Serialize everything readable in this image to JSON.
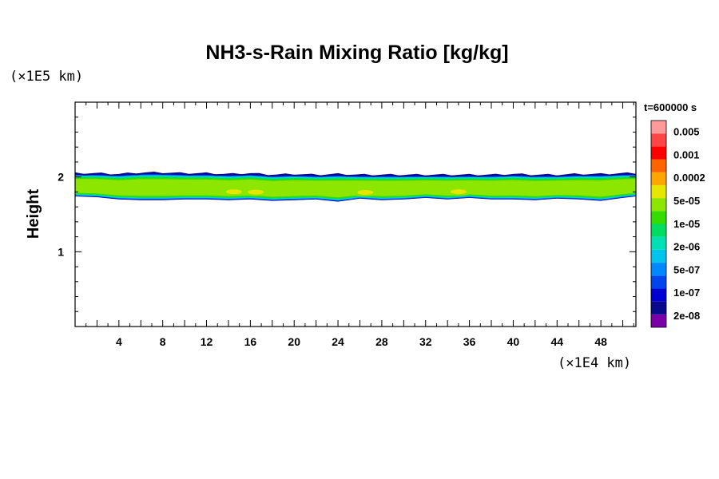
{
  "chart_data": {
    "type": "heatmap",
    "title": "NH3-s-Rain Mixing Ratio [kg/kg]",
    "xlabel": "",
    "ylabel": "Height",
    "x_unit": "(×1E4 km)",
    "y_unit": "(×1E5 km)",
    "time_label": "t=600000 s",
    "xlim": [
      0,
      51.2
    ],
    "ylim": [
      0,
      3
    ],
    "x_ticks": [
      4,
      8,
      12,
      16,
      20,
      24,
      28,
      32,
      36,
      40,
      44,
      48
    ],
    "x_tick_labels": [
      "4",
      "8",
      "12",
      "16",
      "20",
      "24",
      "28",
      "32",
      "36",
      "40",
      "44",
      "48"
    ],
    "y_ticks": [
      1,
      2
    ],
    "y_tick_labels": [
      "1",
      "2"
    ],
    "colorbar": {
      "colors": [
        "#7a00a8",
        "#0a0a8c",
        "#0000d2",
        "#0044ee",
        "#0088ff",
        "#00c4ee",
        "#00e0b4",
        "#00dc60",
        "#34dc00",
        "#8ce600",
        "#e6e600",
        "#ffa500",
        "#ff6400",
        "#ff0000",
        "#ff4646",
        "#ff9a9a"
      ],
      "labels": [
        "2e-08",
        "1e-07",
        "5e-07",
        "2e-06",
        "1e-05",
        "5e-05",
        "0.0002",
        "0.001",
        "0.005"
      ]
    },
    "layer": {
      "x": [
        0,
        2,
        4,
        6,
        8,
        10,
        12,
        14,
        16,
        18,
        20,
        22,
        24,
        26,
        28,
        30,
        32,
        34,
        36,
        38,
        40,
        42,
        44,
        46,
        48,
        50,
        51.2
      ],
      "top_height": [
        2.04,
        2.04,
        2.03,
        2.05,
        2.05,
        2.04,
        2.04,
        2.03,
        2.04,
        2.02,
        2.03,
        2.02,
        2.03,
        2.02,
        2.02,
        2.02,
        2.02,
        2.02,
        2.02,
        2.02,
        2.03,
        2.02,
        2.02,
        2.03,
        2.03,
        2.04,
        2.04
      ],
      "bottom_height": [
        1.74,
        1.73,
        1.7,
        1.69,
        1.69,
        1.7,
        1.7,
        1.69,
        1.7,
        1.68,
        1.69,
        1.7,
        1.67,
        1.71,
        1.69,
        1.7,
        1.72,
        1.7,
        1.72,
        1.7,
        1.7,
        1.69,
        1.71,
        1.7,
        1.68,
        1.72,
        1.74
      ],
      "max_level_index": 10,
      "max_value_label": "5e-05"
    }
  }
}
